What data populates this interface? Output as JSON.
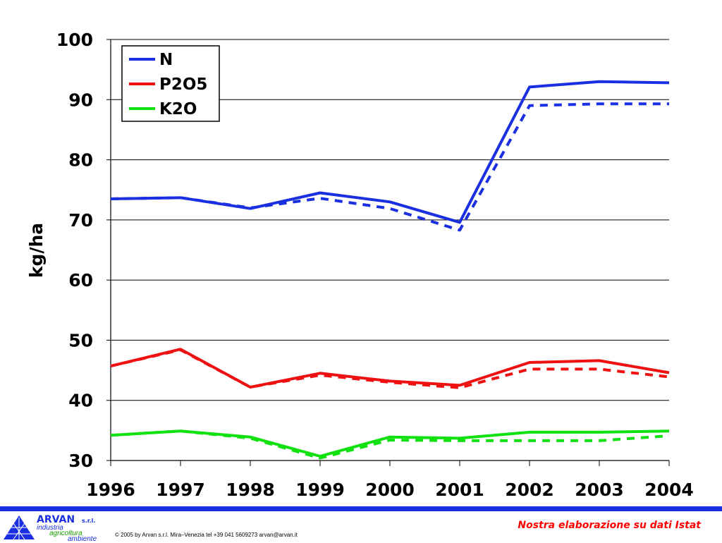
{
  "chart_data": {
    "type": "line",
    "title": "",
    "xlabel": "",
    "ylabel": "kg/ha",
    "categories": [
      "1996",
      "1997",
      "1998",
      "1999",
      "2000",
      "2001",
      "2002",
      "2003",
      "2004"
    ],
    "ylim": [
      30,
      100
    ],
    "yticks": [
      30,
      40,
      50,
      60,
      70,
      80,
      90,
      100
    ],
    "grid": true,
    "legend_position": "top-left",
    "series": [
      {
        "name": "N",
        "color": "#1a2fe0",
        "style": "solid",
        "values": [
          73.5,
          73.7,
          71.9,
          74.5,
          73.0,
          69.6,
          92.1,
          93.0,
          92.8
        ]
      },
      {
        "name": "",
        "color": "#1a2fe0",
        "style": "dashed",
        "values": [
          73.5,
          73.7,
          72.0,
          73.6,
          71.9,
          68.3,
          89.0,
          89.3,
          89.3
        ]
      },
      {
        "name": "P2O5",
        "color": "#ee1111",
        "style": "solid",
        "values": [
          45.7,
          48.5,
          42.2,
          44.5,
          43.2,
          42.5,
          46.3,
          46.6,
          44.6
        ]
      },
      {
        "name": "",
        "color": "#ee1111",
        "style": "dashed",
        "values": [
          45.7,
          48.4,
          42.2,
          44.2,
          43.0,
          42.1,
          45.2,
          45.2,
          43.9
        ]
      },
      {
        "name": "K2O",
        "color": "#11e011",
        "style": "solid",
        "values": [
          34.2,
          34.9,
          33.9,
          30.7,
          33.9,
          33.7,
          34.7,
          34.7,
          34.9
        ]
      },
      {
        "name": "",
        "color": "#11e011",
        "style": "dashed",
        "values": [
          34.2,
          34.9,
          33.7,
          30.4,
          33.4,
          33.3,
          33.3,
          33.3,
          34.1
        ]
      }
    ]
  },
  "footer": {
    "brand_name": "ARVAN",
    "brand_suffix": "s.r.l.",
    "brand_lines": [
      "industria",
      "agricoltura",
      "ambiente"
    ],
    "copyright": "© 2005 by Arvan s.r.l. Mira–Venezia tel +39 041 5609273 arvan@arvan.it",
    "source_note": "Nostra elaborazione su dati Istat",
    "bar_color": "#1a2fe0"
  }
}
